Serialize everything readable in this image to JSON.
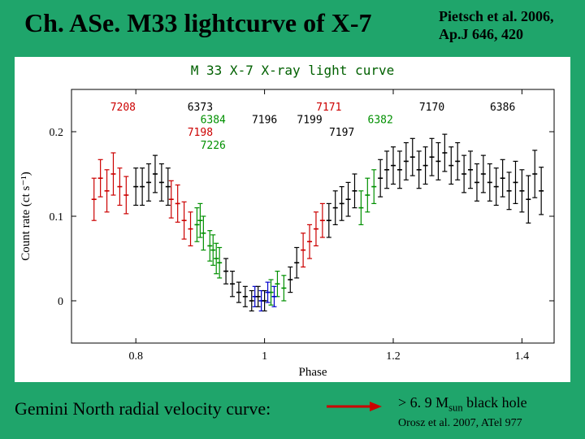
{
  "header": {
    "title": "Ch. ASe. M33 lightcurve of X-7",
    "citation_line1": "Pietsch et al. 2006,",
    "citation_line2": "Ap.J 646, 420"
  },
  "chart": {
    "type": "scatter-errorbar",
    "title": "M 33 X-7 X-ray light curve",
    "title_fontsize": 16,
    "title_color": "#006000",
    "xlabel": "Phase",
    "ylabel": "Count rate (ct s⁻¹)",
    "label_fontsize": 15,
    "xlim": [
      0.7,
      1.45
    ],
    "ylim": [
      -0.05,
      0.25
    ],
    "xticks": [
      0.8,
      1.0,
      1.2,
      1.4
    ],
    "yticks": [
      0,
      0.1,
      0.2
    ],
    "background_color": "#ffffff",
    "axis_color": "#000000",
    "tick_in": true,
    "obs_labels": [
      {
        "text": "7208",
        "phase": 0.78,
        "y": 0.225,
        "color": "#cc0000"
      },
      {
        "text": "6373",
        "phase": 0.9,
        "y": 0.225,
        "color": "#000000"
      },
      {
        "text": "6384",
        "phase": 0.92,
        "y": 0.21,
        "color": "#009000"
      },
      {
        "text": "7198",
        "phase": 0.9,
        "y": 0.195,
        "color": "#cc0000"
      },
      {
        "text": "7226",
        "phase": 0.92,
        "y": 0.18,
        "color": "#009000"
      },
      {
        "text": "7196",
        "phase": 1.0,
        "y": 0.21,
        "color": "#000000"
      },
      {
        "text": "7171",
        "phase": 1.1,
        "y": 0.225,
        "color": "#cc0000"
      },
      {
        "text": "7199",
        "phase": 1.07,
        "y": 0.21,
        "color": "#000000"
      },
      {
        "text": "7197",
        "phase": 1.12,
        "y": 0.195,
        "color": "#000000"
      },
      {
        "text": "6382",
        "phase": 1.18,
        "y": 0.21,
        "color": "#009000"
      },
      {
        "text": "7170",
        "phase": 1.26,
        "y": 0.225,
        "color": "#000000"
      },
      {
        "text": "6386",
        "phase": 1.37,
        "y": 0.225,
        "color": "#000000"
      }
    ],
    "series": [
      {
        "color": "#cc0000",
        "points": [
          {
            "x": 0.735,
            "y": 0.12,
            "ey": 0.025
          },
          {
            "x": 0.745,
            "y": 0.145,
            "ey": 0.022
          },
          {
            "x": 0.755,
            "y": 0.13,
            "ey": 0.025
          },
          {
            "x": 0.765,
            "y": 0.15,
            "ey": 0.025
          },
          {
            "x": 0.775,
            "y": 0.135,
            "ey": 0.022
          },
          {
            "x": 0.785,
            "y": 0.125,
            "ey": 0.022
          },
          {
            "x": 0.855,
            "y": 0.12,
            "ey": 0.022
          },
          {
            "x": 0.865,
            "y": 0.115,
            "ey": 0.022
          },
          {
            "x": 0.875,
            "y": 0.095,
            "ey": 0.022
          },
          {
            "x": 0.885,
            "y": 0.085,
            "ey": 0.02
          },
          {
            "x": 1.06,
            "y": 0.06,
            "ey": 0.02
          },
          {
            "x": 1.07,
            "y": 0.07,
            "ey": 0.02
          },
          {
            "x": 1.08,
            "y": 0.085,
            "ey": 0.02
          },
          {
            "x": 1.09,
            "y": 0.095,
            "ey": 0.02
          }
        ]
      },
      {
        "color": "#009000",
        "points": [
          {
            "x": 0.895,
            "y": 0.09,
            "ey": 0.02
          },
          {
            "x": 0.9,
            "y": 0.095,
            "ey": 0.02
          },
          {
            "x": 0.905,
            "y": 0.08,
            "ey": 0.02
          },
          {
            "x": 0.915,
            "y": 0.065,
            "ey": 0.018
          },
          {
            "x": 0.92,
            "y": 0.06,
            "ey": 0.018
          },
          {
            "x": 0.925,
            "y": 0.05,
            "ey": 0.018
          },
          {
            "x": 0.93,
            "y": 0.045,
            "ey": 0.018
          },
          {
            "x": 1.01,
            "y": 0.01,
            "ey": 0.015
          },
          {
            "x": 1.02,
            "y": 0.02,
            "ey": 0.015
          },
          {
            "x": 1.03,
            "y": 0.015,
            "ey": 0.015
          },
          {
            "x": 1.15,
            "y": 0.11,
            "ey": 0.02
          },
          {
            "x": 1.16,
            "y": 0.125,
            "ey": 0.02
          },
          {
            "x": 1.17,
            "y": 0.135,
            "ey": 0.02
          }
        ]
      },
      {
        "color": "#0000cc",
        "points": [
          {
            "x": 0.985,
            "y": 0.005,
            "ey": 0.012
          },
          {
            "x": 0.995,
            "y": 0.0,
            "ey": 0.012
          },
          {
            "x": 1.005,
            "y": 0.01,
            "ey": 0.012
          },
          {
            "x": 1.015,
            "y": 0.005,
            "ey": 0.012
          }
        ]
      },
      {
        "color": "#000000",
        "points": [
          {
            "x": 0.8,
            "y": 0.135,
            "ey": 0.022
          },
          {
            "x": 0.81,
            "y": 0.135,
            "ey": 0.022
          },
          {
            "x": 0.82,
            "y": 0.14,
            "ey": 0.022
          },
          {
            "x": 0.83,
            "y": 0.15,
            "ey": 0.022
          },
          {
            "x": 0.84,
            "y": 0.14,
            "ey": 0.022
          },
          {
            "x": 0.85,
            "y": 0.135,
            "ey": 0.022
          },
          {
            "x": 0.94,
            "y": 0.035,
            "ey": 0.015
          },
          {
            "x": 0.95,
            "y": 0.02,
            "ey": 0.015
          },
          {
            "x": 0.96,
            "y": 0.01,
            "ey": 0.012
          },
          {
            "x": 0.97,
            "y": 0.005,
            "ey": 0.012
          },
          {
            "x": 0.98,
            "y": 0.0,
            "ey": 0.012
          },
          {
            "x": 0.99,
            "y": 0.005,
            "ey": 0.012
          },
          {
            "x": 1.0,
            "y": 0.0,
            "ey": 0.012
          },
          {
            "x": 1.04,
            "y": 0.025,
            "ey": 0.015
          },
          {
            "x": 1.05,
            "y": 0.045,
            "ey": 0.018
          },
          {
            "x": 1.1,
            "y": 0.095,
            "ey": 0.02
          },
          {
            "x": 1.11,
            "y": 0.11,
            "ey": 0.02
          },
          {
            "x": 1.12,
            "y": 0.115,
            "ey": 0.02
          },
          {
            "x": 1.13,
            "y": 0.12,
            "ey": 0.02
          },
          {
            "x": 1.14,
            "y": 0.13,
            "ey": 0.02
          },
          {
            "x": 1.18,
            "y": 0.145,
            "ey": 0.022
          },
          {
            "x": 1.19,
            "y": 0.155,
            "ey": 0.022
          },
          {
            "x": 1.2,
            "y": 0.16,
            "ey": 0.022
          },
          {
            "x": 1.21,
            "y": 0.155,
            "ey": 0.022
          },
          {
            "x": 1.22,
            "y": 0.165,
            "ey": 0.022
          },
          {
            "x": 1.23,
            "y": 0.17,
            "ey": 0.022
          },
          {
            "x": 1.24,
            "y": 0.155,
            "ey": 0.022
          },
          {
            "x": 1.25,
            "y": 0.16,
            "ey": 0.022
          },
          {
            "x": 1.26,
            "y": 0.17,
            "ey": 0.022
          },
          {
            "x": 1.27,
            "y": 0.165,
            "ey": 0.022
          },
          {
            "x": 1.28,
            "y": 0.175,
            "ey": 0.022
          },
          {
            "x": 1.29,
            "y": 0.16,
            "ey": 0.022
          },
          {
            "x": 1.3,
            "y": 0.165,
            "ey": 0.022
          },
          {
            "x": 1.31,
            "y": 0.15,
            "ey": 0.022
          },
          {
            "x": 1.32,
            "y": 0.155,
            "ey": 0.022
          },
          {
            "x": 1.33,
            "y": 0.14,
            "ey": 0.022
          },
          {
            "x": 1.34,
            "y": 0.15,
            "ey": 0.022
          },
          {
            "x": 1.35,
            "y": 0.14,
            "ey": 0.022
          },
          {
            "x": 1.36,
            "y": 0.135,
            "ey": 0.022
          },
          {
            "x": 1.37,
            "y": 0.145,
            "ey": 0.022
          },
          {
            "x": 1.38,
            "y": 0.13,
            "ey": 0.022
          },
          {
            "x": 1.39,
            "y": 0.14,
            "ey": 0.025
          },
          {
            "x": 1.4,
            "y": 0.13,
            "ey": 0.025
          },
          {
            "x": 1.41,
            "y": 0.12,
            "ey": 0.028
          },
          {
            "x": 1.42,
            "y": 0.15,
            "ey": 0.028
          },
          {
            "x": 1.43,
            "y": 0.13,
            "ey": 0.028
          }
        ]
      }
    ]
  },
  "footer": {
    "left_text": "Gemini North radial velocity curve:",
    "arrow_color": "#cc0000",
    "right_main_pre": "> 6. 9 M",
    "right_main_sub": "sun",
    "right_main_post": "  black hole",
    "right_cite": "Orosz et al. 2007, ATel 977"
  }
}
